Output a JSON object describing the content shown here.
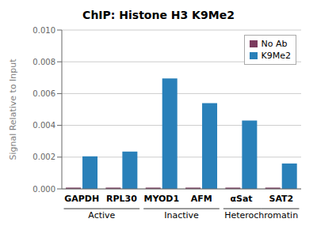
{
  "chart_data": {
    "type": "bar",
    "title": "ChIP: Histone H3 K9Me2",
    "ylabel": "Signal Relative to Input",
    "categories": [
      "GAPDH",
      "RPL30",
      "MYOD1",
      "AFM",
      "αSat",
      "SAT2"
    ],
    "series": [
      {
        "name": "No Ab",
        "color": "#7B3B5E",
        "values": [
          8e-05,
          8e-05,
          8e-05,
          8e-05,
          8e-05,
          8e-05
        ]
      },
      {
        "name": "K9Me2",
        "color": "#2980B9",
        "values": [
          0.00205,
          0.00235,
          0.00695,
          0.0054,
          0.0043,
          0.0016
        ]
      }
    ],
    "ylim": [
      0,
      0.01
    ],
    "yticks": [
      {
        "value": 0,
        "label": "0.000"
      },
      {
        "value": 0.002,
        "label": "0.002"
      },
      {
        "value": 0.004,
        "label": "0.004"
      },
      {
        "value": 0.006,
        "label": "0.006"
      },
      {
        "value": 0.008,
        "label": "0.008"
      },
      {
        "value": 0.01,
        "label": "0.010"
      }
    ],
    "grid": true,
    "legend": "upper right",
    "groups": [
      {
        "label": "Active",
        "categories": [
          "GAPDH",
          "RPL30"
        ]
      },
      {
        "label": "Inactive",
        "categories": [
          "MYOD1",
          "AFM"
        ]
      },
      {
        "label": "Heterochromatin",
        "categories": [
          "αSat",
          "SAT2"
        ]
      }
    ]
  }
}
